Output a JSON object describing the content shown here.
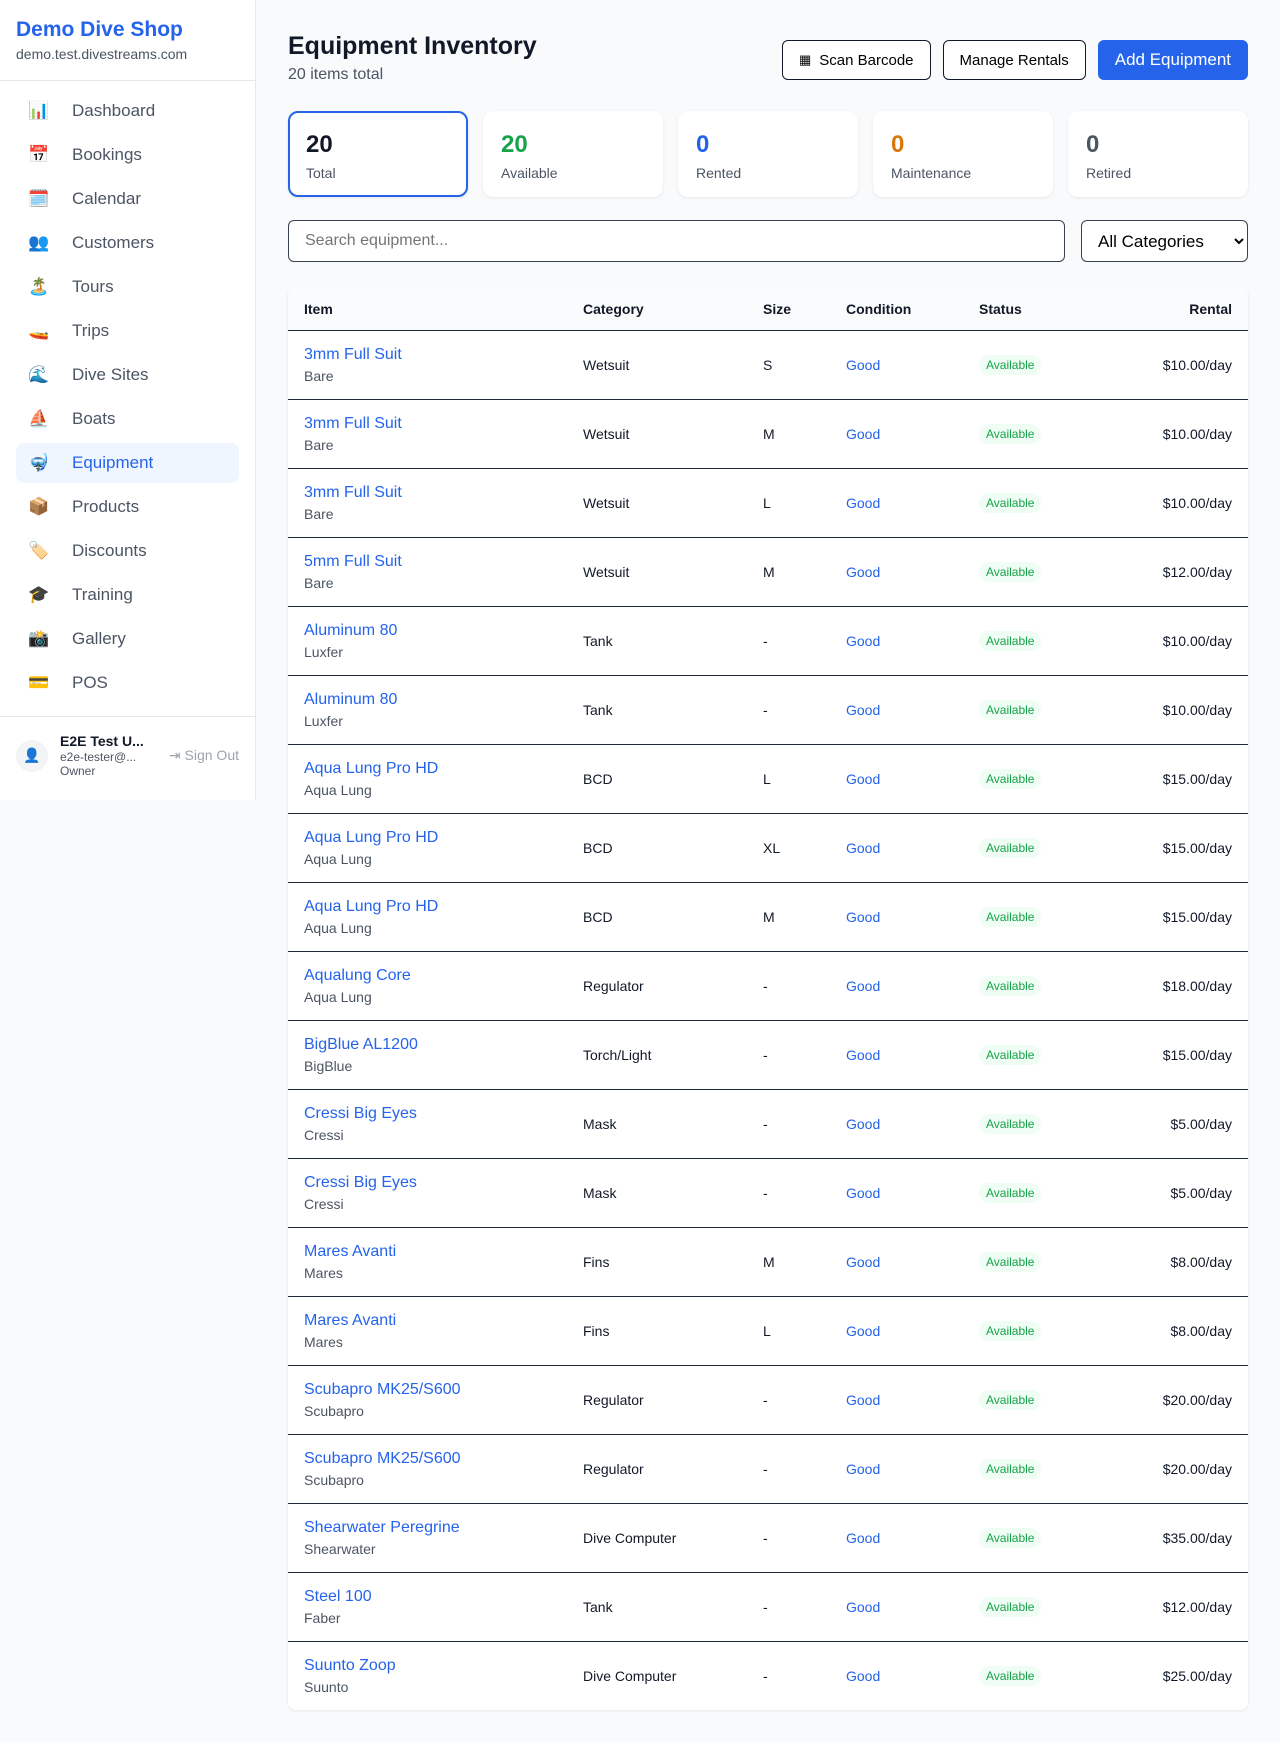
{
  "sidebar": {
    "brand": "Demo Dive Shop",
    "domain": "demo.test.divestreams.com",
    "items": [
      {
        "label": "Dashboard",
        "icon": "📊"
      },
      {
        "label": "Bookings",
        "icon": "📅"
      },
      {
        "label": "Calendar",
        "icon": "🗓️"
      },
      {
        "label": "Customers",
        "icon": "👥"
      },
      {
        "label": "Tours",
        "icon": "🏝️"
      },
      {
        "label": "Trips",
        "icon": "🚤"
      },
      {
        "label": "Dive Sites",
        "icon": "🌊"
      },
      {
        "label": "Boats",
        "icon": "⛵"
      },
      {
        "label": "Equipment",
        "icon": "🤿",
        "active": true
      },
      {
        "label": "Products",
        "icon": "📦"
      },
      {
        "label": "Discounts",
        "icon": "🏷️"
      },
      {
        "label": "Training",
        "icon": "🎓"
      },
      {
        "label": "Gallery",
        "icon": "📸"
      },
      {
        "label": "POS",
        "icon": "💳"
      }
    ],
    "user": {
      "name": "E2E Test U...",
      "email": "e2e-tester@...",
      "role": "Owner",
      "sign_out": "Sign Out"
    }
  },
  "header": {
    "title": "Equipment Inventory",
    "subtitle": "20 items total",
    "scan": "Scan Barcode",
    "manage": "Manage Rentals",
    "add": "Add Equipment"
  },
  "stats": [
    {
      "value": "20",
      "label": "Total",
      "color": "#111827"
    },
    {
      "value": "20",
      "label": "Available",
      "color": "#16a34a"
    },
    {
      "value": "0",
      "label": "Rented",
      "color": "#2563eb"
    },
    {
      "value": "0",
      "label": "Maintenance",
      "color": "#d97706"
    },
    {
      "value": "0",
      "label": "Retired",
      "color": "#4b5563"
    }
  ],
  "filters": {
    "search_placeholder": "Search equipment...",
    "category": "All Categories"
  },
  "table": {
    "headers": [
      "Item",
      "Category",
      "Size",
      "Condition",
      "Status",
      "Rental"
    ],
    "rows": [
      [
        "3mm Full Suit",
        "Bare",
        "Wetsuit",
        "S",
        "Good",
        "Available",
        "$10.00/day"
      ],
      [
        "3mm Full Suit",
        "Bare",
        "Wetsuit",
        "M",
        "Good",
        "Available",
        "$10.00/day"
      ],
      [
        "3mm Full Suit",
        "Bare",
        "Wetsuit",
        "L",
        "Good",
        "Available",
        "$10.00/day"
      ],
      [
        "5mm Full Suit",
        "Bare",
        "Wetsuit",
        "M",
        "Good",
        "Available",
        "$12.00/day"
      ],
      [
        "Aluminum 80",
        "Luxfer",
        "Tank",
        "-",
        "Good",
        "Available",
        "$10.00/day"
      ],
      [
        "Aluminum 80",
        "Luxfer",
        "Tank",
        "-",
        "Good",
        "Available",
        "$10.00/day"
      ],
      [
        "Aqua Lung Pro HD",
        "Aqua Lung",
        "BCD",
        "L",
        "Good",
        "Available",
        "$15.00/day"
      ],
      [
        "Aqua Lung Pro HD",
        "Aqua Lung",
        "BCD",
        "XL",
        "Good",
        "Available",
        "$15.00/day"
      ],
      [
        "Aqua Lung Pro HD",
        "Aqua Lung",
        "BCD",
        "M",
        "Good",
        "Available",
        "$15.00/day"
      ],
      [
        "Aqualung Core",
        "Aqua Lung",
        "Regulator",
        "-",
        "Good",
        "Available",
        "$18.00/day"
      ],
      [
        "BigBlue AL1200",
        "BigBlue",
        "Torch/Light",
        "-",
        "Good",
        "Available",
        "$15.00/day"
      ],
      [
        "Cressi Big Eyes",
        "Cressi",
        "Mask",
        "-",
        "Good",
        "Available",
        "$5.00/day"
      ],
      [
        "Cressi Big Eyes",
        "Cressi",
        "Mask",
        "-",
        "Good",
        "Available",
        "$5.00/day"
      ],
      [
        "Mares Avanti",
        "Mares",
        "Fins",
        "M",
        "Good",
        "Available",
        "$8.00/day"
      ],
      [
        "Mares Avanti",
        "Mares",
        "Fins",
        "L",
        "Good",
        "Available",
        "$8.00/day"
      ],
      [
        "Scubapro MK25/S600",
        "Scubapro",
        "Regulator",
        "-",
        "Good",
        "Available",
        "$20.00/day"
      ],
      [
        "Scubapro MK25/S600",
        "Scubapro",
        "Regulator",
        "-",
        "Good",
        "Available",
        "$20.00/day"
      ],
      [
        "Shearwater Peregrine",
        "Shearwater",
        "Dive Computer",
        "-",
        "Good",
        "Available",
        "$35.00/day"
      ],
      [
        "Steel 100",
        "Faber",
        "Tank",
        "-",
        "Good",
        "Available",
        "$12.00/day"
      ],
      [
        "Suunto Zoop",
        "Suunto",
        "Dive Computer",
        "-",
        "Good",
        "Available",
        "$25.00/day"
      ]
    ]
  }
}
